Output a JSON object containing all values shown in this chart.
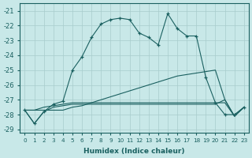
{
  "xlabel": "Humidex (Indice chaleur)",
  "background_color": "#c8e8e8",
  "grid_color": "#a8cccc",
  "line_color": "#1a6060",
  "xlim": [
    -0.5,
    23.5
  ],
  "ylim": [
    -29.2,
    -20.5
  ],
  "xticks": [
    0,
    1,
    2,
    3,
    4,
    5,
    6,
    7,
    8,
    9,
    10,
    11,
    12,
    13,
    14,
    15,
    16,
    17,
    18,
    19,
    20,
    21,
    22,
    23
  ],
  "yticks": [
    -29,
    -28,
    -27,
    -26,
    -25,
    -24,
    -23,
    -22,
    -21
  ],
  "series": [
    {
      "y": [
        -27.7,
        -28.6,
        -27.8,
        -27.3,
        -27.1,
        -25.0,
        -24.1,
        -22.8,
        -21.9,
        -21.6,
        -21.5,
        -21.6,
        -22.5,
        -22.8,
        -23.3,
        -21.2,
        -22.2,
        -22.7,
        -22.7,
        -25.5,
        -27.2,
        -28.0,
        -28.0,
        -27.5
      ],
      "marker": true
    },
    {
      "y": [
        -27.7,
        -27.7,
        -27.7,
        -27.7,
        -27.7,
        -27.5,
        -27.4,
        -27.2,
        -27.0,
        -26.8,
        -26.6,
        -26.4,
        -26.2,
        -26.0,
        -25.8,
        -25.6,
        -25.4,
        -25.3,
        -25.2,
        -25.1,
        -25.0,
        -27.0,
        -28.1,
        -27.5
      ],
      "marker": false
    },
    {
      "y": [
        -27.7,
        -27.7,
        -27.5,
        -27.4,
        -27.3,
        -27.2,
        -27.2,
        -27.2,
        -27.2,
        -27.2,
        -27.2,
        -27.2,
        -27.2,
        -27.2,
        -27.2,
        -27.2,
        -27.2,
        -27.2,
        -27.2,
        -27.2,
        -27.2,
        -27.2,
        -28.1,
        -27.5
      ],
      "marker": false
    },
    {
      "y": [
        -27.7,
        -28.6,
        -27.8,
        -27.5,
        -27.4,
        -27.3,
        -27.3,
        -27.3,
        -27.3,
        -27.3,
        -27.3,
        -27.3,
        -27.3,
        -27.3,
        -27.3,
        -27.3,
        -27.3,
        -27.3,
        -27.3,
        -27.3,
        -27.3,
        -27.0,
        -28.1,
        -27.5
      ],
      "marker": false
    }
  ]
}
